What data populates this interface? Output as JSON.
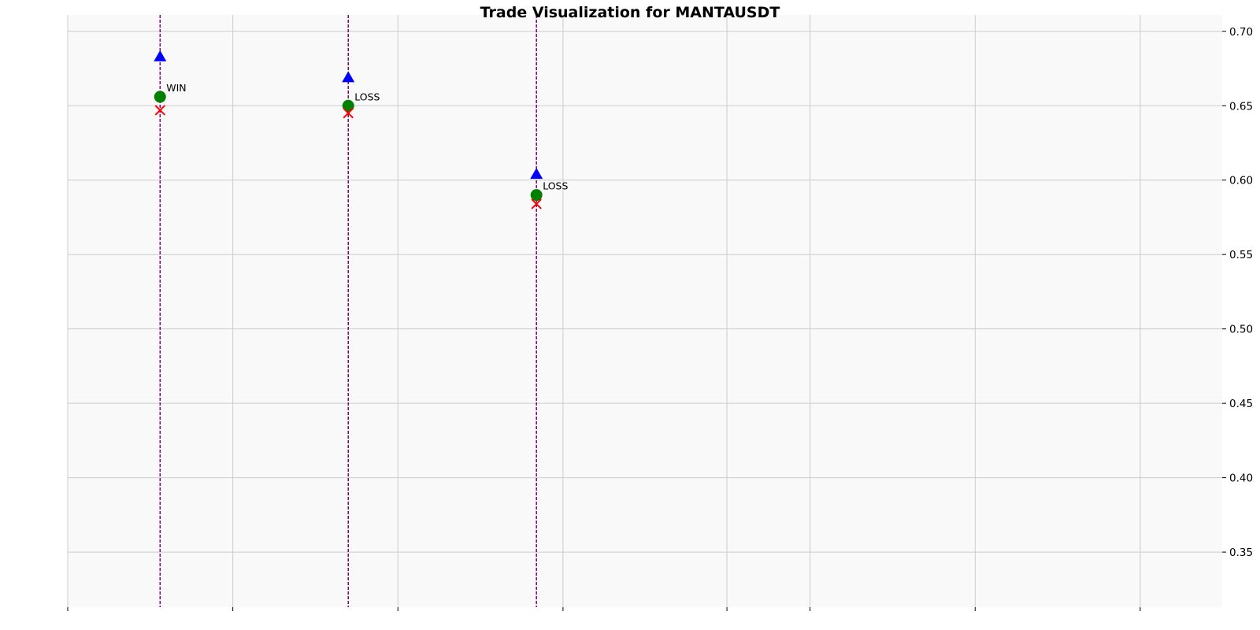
{
  "chart_data": {
    "type": "scatter",
    "title": "Trade Visualization for MANTAUSDT",
    "xlabel": "",
    "ylabel": "",
    "ylim": [
      0.313,
      0.711
    ],
    "xlim": [
      0,
      1
    ],
    "y_ticks": [
      "0.35",
      "0.40",
      "0.45",
      "0.50",
      "0.55",
      "0.60",
      "0.65",
      "0.70"
    ],
    "y_tick_values": [
      0.35,
      0.4,
      0.45,
      0.5,
      0.55,
      0.6,
      0.65,
      0.7
    ],
    "x_tick_positions": [
      0.0,
      0.143,
      0.286,
      0.429,
      0.571,
      0.643,
      0.786,
      0.929
    ],
    "grid": true,
    "y_axis_side": "right",
    "colors": {
      "background": "#f9f9f9",
      "grid": "#cccccc",
      "entry": "#0000ff",
      "exit": "#008000",
      "stop": "#ff0000",
      "trade_line": "#800080"
    },
    "series": [
      {
        "marker": "triangle",
        "color": "#0000ff",
        "x": [
          0.08,
          0.243,
          0.406
        ],
        "y": [
          0.683,
          0.669,
          0.604
        ]
      },
      {
        "marker": "circle",
        "color": "#008000",
        "x": [
          0.08,
          0.243,
          0.406
        ],
        "y": [
          0.656,
          0.65,
          0.59
        ]
      },
      {
        "marker": "x",
        "color": "#ff0000",
        "x": [
          0.08,
          0.243,
          0.406
        ],
        "y": [
          0.647,
          0.645,
          0.584
        ]
      }
    ],
    "trades": [
      {
        "x": 0.08,
        "label": "WIN",
        "label_y": 0.656
      },
      {
        "x": 0.243,
        "label": "LOSS",
        "label_y": 0.65
      },
      {
        "x": 0.406,
        "label": "LOSS",
        "label_y": 0.59
      }
    ]
  }
}
